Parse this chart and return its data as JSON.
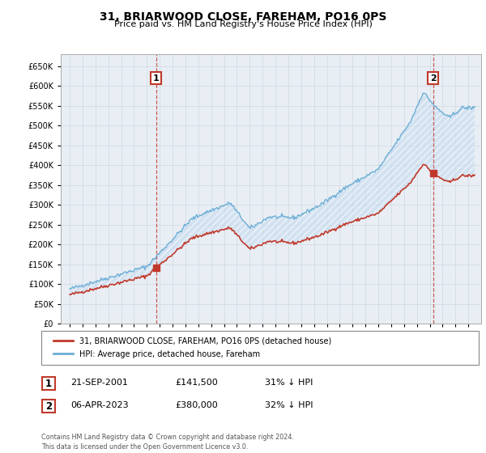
{
  "title": "31, BRIARWOOD CLOSE, FAREHAM, PO16 0PS",
  "subtitle": "Price paid vs. HM Land Registry's House Price Index (HPI)",
  "yticks": [
    0,
    50000,
    100000,
    150000,
    200000,
    250000,
    300000,
    350000,
    400000,
    450000,
    500000,
    550000,
    600000,
    650000
  ],
  "ylim": [
    0,
    680000
  ],
  "hpi_color": "#6baed6",
  "hpi_fill_color": "#c6dbef",
  "price_color": "#c0392b",
  "grid_color": "#d0d8e0",
  "legend_label1": "31, BRIARWOOD CLOSE, FAREHAM, PO16 0PS (detached house)",
  "legend_label2": "HPI: Average price, detached house, Fareham",
  "sale1_label": "1",
  "sale1_date": "21-SEP-2001",
  "sale1_price": "£141,500",
  "sale1_hpi": "31% ↓ HPI",
  "sale2_label": "2",
  "sale2_date": "06-APR-2023",
  "sale2_price": "£380,000",
  "sale2_hpi": "32% ↓ HPI",
  "footer": "Contains HM Land Registry data © Crown copyright and database right 2024.\nThis data is licensed under the Open Government Licence v3.0.",
  "plot_bg_color": "#e8eef4",
  "sale1_year": 2001.72,
  "sale1_price_val": 141500,
  "sale2_year": 2023.27,
  "sale2_price_val": 380000
}
